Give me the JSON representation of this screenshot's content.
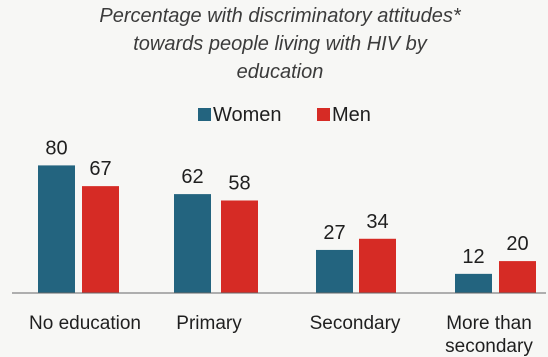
{
  "chart_data": {
    "type": "bar",
    "title_lines": [
      "Percentage with discriminatory attitudes*",
      "towards people living with HIV by",
      "education"
    ],
    "categories": [
      [
        "No education"
      ],
      [
        "Primary"
      ],
      [
        "Secondary"
      ],
      [
        "More than",
        "secondary"
      ]
    ],
    "series": [
      {
        "name": "Women",
        "color": "#23647f",
        "values": [
          80,
          62,
          27,
          12
        ]
      },
      {
        "name": "Men",
        "color": "#d62b25",
        "values": [
          67,
          58,
          34,
          20
        ]
      }
    ],
    "ylim": [
      0,
      100
    ],
    "grid": false,
    "legend": "top-center"
  }
}
